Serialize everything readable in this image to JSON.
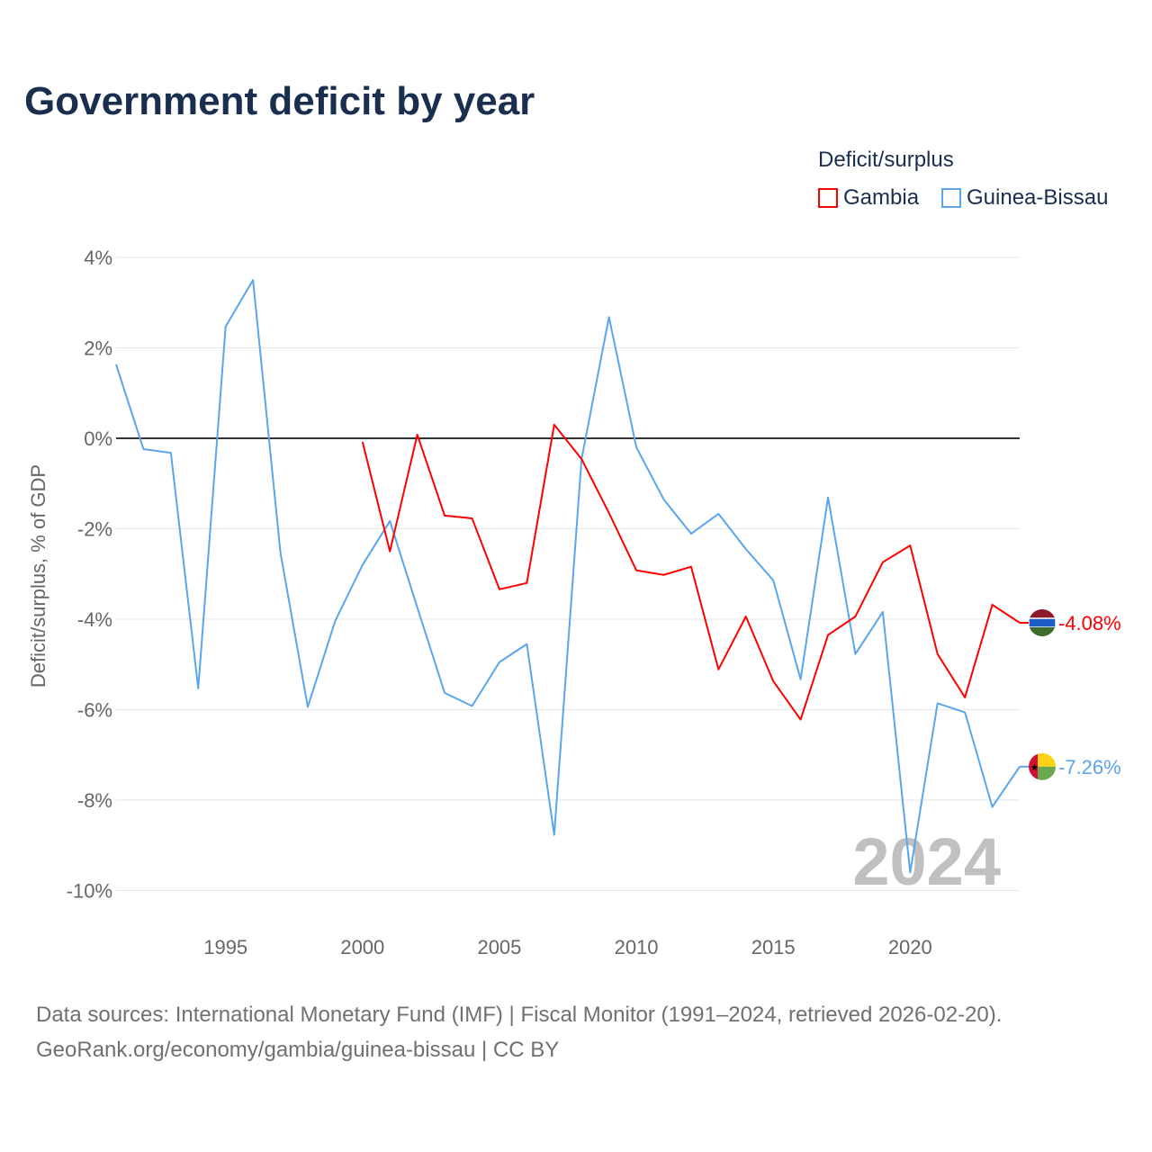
{
  "chart_data": {
    "type": "line",
    "title": "Government deficit by year",
    "ylabel": "Deficit/surplus, % of GDP",
    "xlabel": "",
    "legend_title": "Deficit/surplus",
    "legend_placement": "top-right",
    "ylim": [
      -10.5,
      4
    ],
    "xlim": [
      1991,
      2024
    ],
    "y_ticks": [
      4,
      2,
      0,
      -2,
      -4,
      -6,
      -8,
      -10
    ],
    "y_tick_labels": [
      "4%",
      "2%",
      "0%",
      "-2%",
      "-4%",
      "-6%",
      "-8%",
      "-10%"
    ],
    "x_ticks": [
      1995,
      2000,
      2005,
      2010,
      2015,
      2020
    ],
    "x_tick_labels": [
      "1995",
      "2000",
      "2005",
      "2010",
      "2015",
      "2020"
    ],
    "grid": true,
    "year_watermark": "2024",
    "series": [
      {
        "name": "Gambia",
        "color": "#ff0000",
        "end_label": "-4.08%",
        "x": [
          2000,
          2001,
          2002,
          2003,
          2004,
          2005,
          2006,
          2007,
          2008,
          2009,
          2010,
          2011,
          2012,
          2013,
          2014,
          2015,
          2016,
          2017,
          2018,
          2019,
          2020,
          2021,
          2022,
          2023,
          2024
        ],
        "values": [
          -0.08,
          -2.5,
          0.08,
          -1.71,
          -1.77,
          -3.34,
          -3.2,
          0.3,
          -0.46,
          -1.65,
          -2.92,
          -3.02,
          -2.84,
          -5.11,
          -3.94,
          -5.37,
          -6.22,
          -4.35,
          -3.94,
          -2.74,
          -2.37,
          -4.77,
          -5.73,
          -3.68,
          -4.08
        ]
      },
      {
        "name": "Guinea-Bissau",
        "color": "#5ba4ee",
        "end_label": "-7.26%",
        "x": [
          1991,
          1992,
          1993,
          1994,
          1995,
          1996,
          1997,
          1998,
          1999,
          2000,
          2001,
          2002,
          2003,
          2004,
          2005,
          2006,
          2007,
          2008,
          2009,
          2010,
          2011,
          2012,
          2013,
          2014,
          2015,
          2016,
          2017,
          2018,
          2019,
          2020,
          2021,
          2022,
          2023,
          2024
        ],
        "values": [
          1.63,
          -0.24,
          -0.32,
          -5.53,
          2.47,
          3.5,
          -2.52,
          -5.94,
          -4.04,
          -2.8,
          -1.83,
          -3.74,
          -5.63,
          -5.92,
          -4.95,
          -4.55,
          -8.77,
          -0.46,
          2.68,
          -0.2,
          -1.35,
          -2.11,
          -1.67,
          -2.45,
          -3.14,
          -5.33,
          -1.31,
          -4.77,
          -3.84,
          -9.6,
          -5.86,
          -6.06,
          -8.15,
          -7.26
        ]
      }
    ]
  },
  "source": {
    "line1": "Data sources: International Monetary Fund (IMF) | Fiscal Monitor (1991–2024, retrieved 2026-02-20).",
    "line2": "GeoRank.org/economy/gambia/guinea-bissau | CC BY"
  }
}
